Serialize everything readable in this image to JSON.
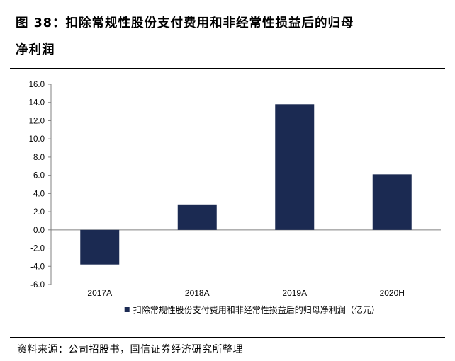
{
  "figure": {
    "title_line1": "图  38：扣除常规性股份支付费用和非经常性损益后的归母",
    "title_line2": "净利润",
    "source": "资料来源：公司招股书，国信证券经济研究所整理"
  },
  "chart_data": {
    "type": "bar",
    "categories": [
      "2017A",
      "2018A",
      "2019A",
      "2020H"
    ],
    "series": [
      {
        "name": "扣除常规性股份支付费用和非经常性损益后的归母净利润（亿元）",
        "values": [
          -3.8,
          2.8,
          13.8,
          6.1
        ],
        "color": "#1b2a52"
      }
    ],
    "yticks": [
      "16.0",
      "14.0",
      "12.0",
      "10.0",
      "8.0",
      "6.0",
      "4.0",
      "2.0",
      "0.0",
      "-2.0",
      "-4.0",
      "-6.0"
    ],
    "ylim": [
      -6,
      16
    ],
    "ystep": 2,
    "grid": false,
    "legend_position": "bottom"
  }
}
